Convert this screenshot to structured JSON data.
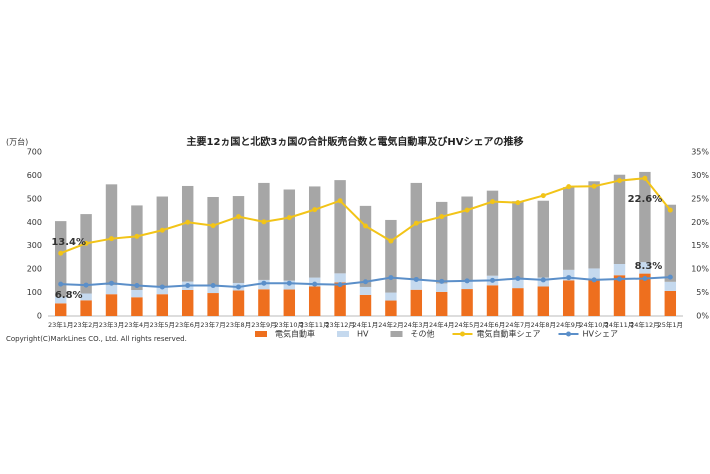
{
  "chart_data": {
    "type": "bar",
    "title": "主要12ヵ国と北欧3ヵ国の合計販売台数と電気自動車及びHVシェアの推移",
    "y_label": "(万台)",
    "footnote": "Copyright(C)MarkLines CO., Ltd. All rights reserved.",
    "categories": [
      "23年1月",
      "23年2月",
      "23年3月",
      "23年4月",
      "23年5月",
      "23年6月",
      "23年7月",
      "23年8月",
      "23年9月",
      "23年10月",
      "23年11月",
      "23年12月",
      "24年1月",
      "24年2月",
      "24年3月",
      "24年4月",
      "24年5月",
      "24年6月",
      "24年7月",
      "24年8月",
      "24年9月",
      "24年10月",
      "24年11月",
      "24年12月",
      "25年1月"
    ],
    "series": [
      {
        "name": "電気自動車",
        "type": "bar",
        "color": "#ee6f1e",
        "values": [
          54,
          67,
          93,
          80,
          93,
          111,
          98,
          109,
          114,
          113,
          126,
          143,
          90,
          66,
          112,
          103,
          115,
          131,
          119,
          126,
          152,
          159,
          174,
          181,
          107
        ]
      },
      {
        "name": "HV",
        "type": "bar",
        "color": "#c5d9ee",
        "values": [
          28,
          29,
          39,
          31,
          32,
          36,
          33,
          32,
          40,
          38,
          38,
          39,
          34,
          34,
          44,
          36,
          38,
          41,
          39,
          38,
          45,
          44,
          48,
          49,
          39
        ]
      },
      {
        "name": "その他",
        "type": "bar",
        "color": "#a6a6a6",
        "values": [
          323,
          339,
          430,
          361,
          385,
          408,
          377,
          371,
          414,
          389,
          389,
          398,
          346,
          310,
          412,
          348,
          357,
          363,
          332,
          328,
          353,
          372,
          381,
          385,
          329
        ]
      },
      {
        "name": "電気自動車シェア",
        "type": "line",
        "axis": "y2",
        "color": "#f2c418",
        "values": [
          13.4,
          15.5,
          16.5,
          17.0,
          18.3,
          20.0,
          19.3,
          21.2,
          20.1,
          21.0,
          22.7,
          24.6,
          19.2,
          16.0,
          19.8,
          21.2,
          22.6,
          24.4,
          24.2,
          25.7,
          27.6,
          27.7,
          28.9,
          29.4,
          22.6
        ],
        "value_labels": [
          "13.4%",
          null,
          null,
          null,
          null,
          null,
          null,
          null,
          null,
          null,
          null,
          null,
          null,
          null,
          null,
          null,
          null,
          null,
          null,
          null,
          null,
          null,
          null,
          null,
          "22.6%"
        ]
      },
      {
        "name": "HVシェア",
        "type": "line",
        "axis": "y2",
        "color": "#5b8fc9",
        "values": [
          6.8,
          6.6,
          7.0,
          6.5,
          6.2,
          6.5,
          6.5,
          6.2,
          7.0,
          7.0,
          6.8,
          6.7,
          7.3,
          8.2,
          7.8,
          7.4,
          7.5,
          7.6,
          8.0,
          7.7,
          8.2,
          7.7,
          7.9,
          8.0,
          8.3
        ],
        "value_labels": [
          "6.8%",
          null,
          null,
          null,
          null,
          null,
          null,
          null,
          null,
          null,
          null,
          null,
          null,
          null,
          null,
          null,
          null,
          null,
          null,
          null,
          null,
          null,
          null,
          null,
          "8.3%"
        ]
      }
    ],
    "ylim": [
      0,
      700
    ],
    "yticks": [
      0,
      100,
      200,
      300,
      400,
      500,
      600,
      700
    ],
    "y2lim": [
      0,
      35
    ],
    "y2ticks": [
      {
        "value": 0,
        "label": "0%"
      },
      {
        "value": 5,
        "label": "5%"
      },
      {
        "value": 10,
        "label": "10%"
      },
      {
        "value": 15,
        "label": "15%"
      },
      {
        "value": 20,
        "label": "20%"
      },
      {
        "value": 25,
        "label": "25%"
      },
      {
        "value": 30,
        "label": "30%"
      },
      {
        "value": 35,
        "label": "35%"
      }
    ],
    "grid": false
  }
}
